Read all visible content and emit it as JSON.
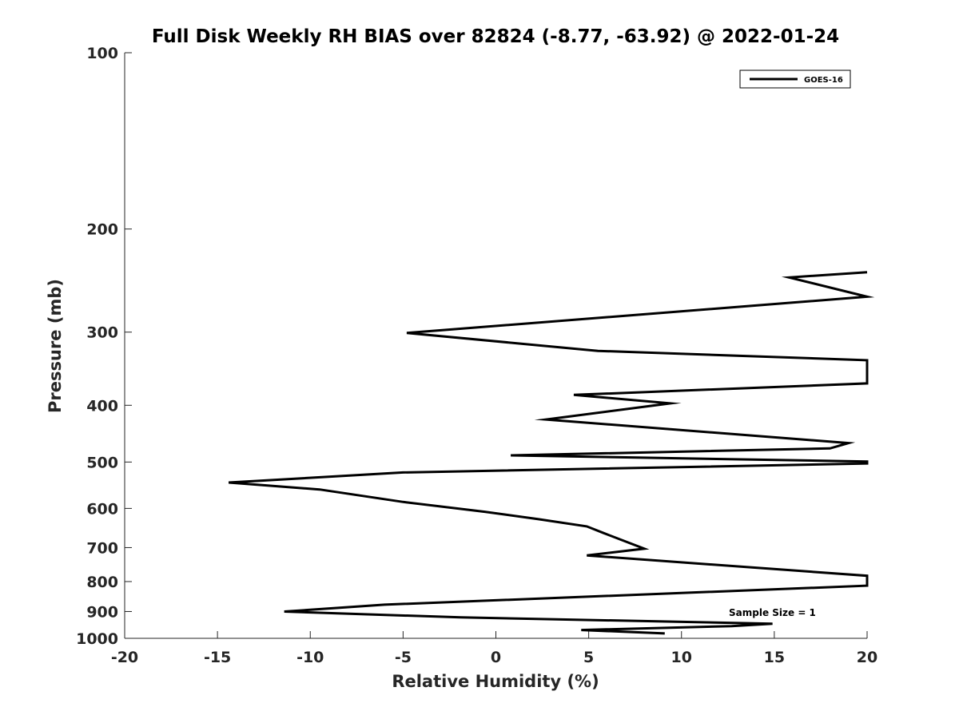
{
  "chart_data": {
    "type": "line",
    "title": "Full Disk Weekly RH BIAS over 82824 (-8.77, -63.92) @ 2022-01-24",
    "xlabel": "Relative Humidity (%)",
    "ylabel": "Pressure (mb)",
    "xlim": [
      -20,
      20
    ],
    "ylim": [
      100,
      1000
    ],
    "y_scale": "log",
    "y_reversed": true,
    "x_ticks": [
      -20,
      -15,
      -10,
      -5,
      0,
      5,
      10,
      15,
      20
    ],
    "x_tick_labels": [
      "-20",
      "-15",
      "-10",
      "-5",
      "0",
      "5",
      "10",
      "15",
      "20"
    ],
    "y_ticks": [
      100,
      200,
      300,
      400,
      500,
      600,
      700,
      800,
      900,
      1000
    ],
    "y_tick_labels": [
      "100",
      "200",
      "300",
      "400",
      "500",
      "600",
      "700",
      "800",
      "900",
      "1000"
    ],
    "grid": false,
    "legend_position": "top-right",
    "annotation": "Sample Size = 1",
    "series": [
      {
        "name": "GOES-16",
        "color": "#000000",
        "points": [
          [
            20.0,
            237
          ],
          [
            15.8,
            242
          ],
          [
            20.0,
            261
          ],
          [
            -4.8,
            301
          ],
          [
            5.5,
            323
          ],
          [
            20.0,
            335
          ],
          [
            20.0,
            367
          ],
          [
            4.2,
            384
          ],
          [
            9.4,
            397
          ],
          [
            2.7,
            423
          ],
          [
            19.0,
            464
          ],
          [
            18.0,
            474
          ],
          [
            0.8,
            487
          ],
          [
            20.0,
            499
          ],
          [
            20.0,
            503
          ],
          [
            -5.0,
            521
          ],
          [
            -14.4,
            542
          ],
          [
            -9.5,
            557
          ],
          [
            -5.0,
            585
          ],
          [
            -0.6,
            608
          ],
          [
            2.3,
            626
          ],
          [
            4.9,
            644
          ],
          [
            5.8,
            661
          ],
          [
            8.0,
            703
          ],
          [
            4.9,
            722
          ],
          [
            20.0,
            782
          ],
          [
            20.0,
            813
          ],
          [
            -6.0,
            876
          ],
          [
            -11.4,
            900
          ],
          [
            -1.9,
            921
          ],
          [
            14.9,
            944
          ],
          [
            12.7,
            953
          ],
          [
            4.6,
            968
          ],
          [
            9.1,
            981
          ]
        ]
      }
    ]
  }
}
